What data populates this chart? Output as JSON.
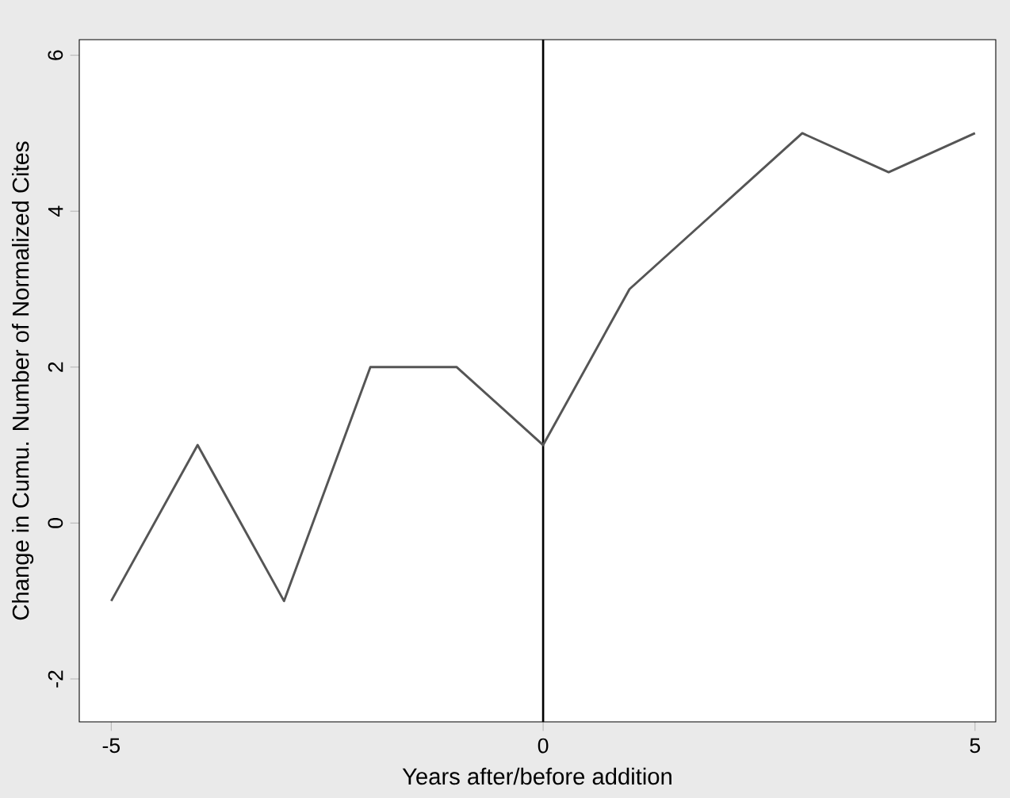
{
  "chart_data": {
    "type": "line",
    "xlabel": "Years after/before addition",
    "ylabel": "Change in Cumu. Number of Normalized Cites",
    "x": [
      -5,
      -4,
      -3,
      -2,
      -1,
      0,
      1,
      2,
      3,
      4,
      5
    ],
    "series": [
      {
        "color": "#555555",
        "values": [
          -1,
          1,
          -1,
          2,
          2,
          1,
          3,
          4,
          5,
          4.5,
          5
        ]
      }
    ],
    "xlim": [
      -5.37,
      5.24
    ],
    "ylim": [
      -2.55,
      6.2
    ],
    "xticks": [
      -5,
      0,
      5
    ],
    "yticks": [
      -2,
      0,
      2,
      4,
      6
    ],
    "ref_lines": [
      {
        "axis": "x",
        "value": 0,
        "color": "#000000"
      }
    ],
    "grid": false,
    "marker": "none",
    "line_style": "solid"
  }
}
